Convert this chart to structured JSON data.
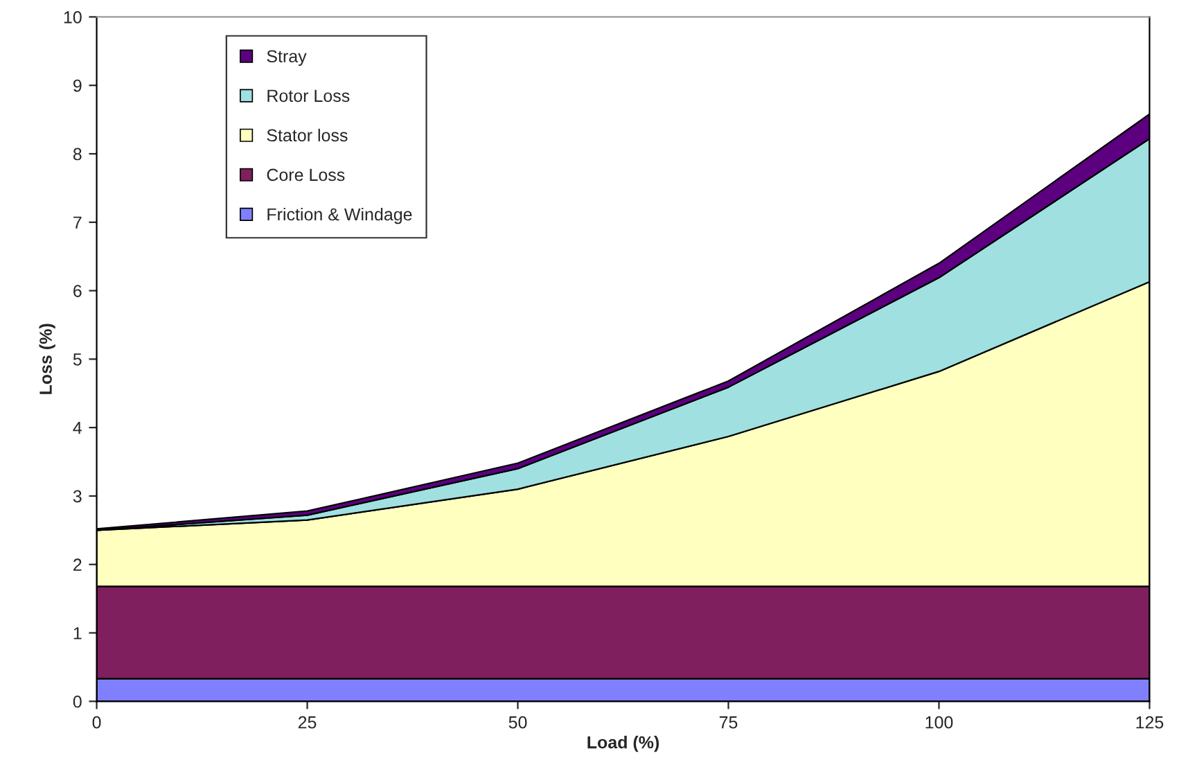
{
  "chart_data": {
    "type": "area",
    "stacked": true,
    "xlabel": "Load (%)",
    "ylabel": "Loss (%)",
    "x": [
      0,
      25,
      50,
      75,
      100,
      125
    ],
    "series": [
      {
        "name": "Friction & Windage",
        "color": "#8080ff",
        "values": [
          0.33,
          0.33,
          0.33,
          0.33,
          0.33,
          0.33
        ]
      },
      {
        "name": "Core Loss",
        "color": "#7f1f5d",
        "values": [
          1.35,
          1.35,
          1.35,
          1.35,
          1.35,
          1.35
        ]
      },
      {
        "name": "Stator loss",
        "color": "#ffffc0",
        "values": [
          0.82,
          0.97,
          1.42,
          2.19,
          3.14,
          4.45
        ]
      },
      {
        "name": "Rotor Loss",
        "color": "#a0e0e0",
        "values": [
          0,
          0.07,
          0.3,
          0.72,
          1.37,
          2.09
        ]
      },
      {
        "name": "Stray",
        "color": "#5c0080",
        "values": [
          0.02,
          0.06,
          0.08,
          0.09,
          0.21,
          0.36
        ]
      }
    ],
    "xlim": [
      0,
      125
    ],
    "xticks": [
      0,
      25,
      50,
      75,
      100,
      125
    ],
    "ylim": [
      0,
      10
    ],
    "yticks": [
      0,
      1,
      2,
      3,
      4,
      5,
      6,
      7,
      8,
      9,
      10
    ],
    "grid": false,
    "legend": "top left"
  }
}
